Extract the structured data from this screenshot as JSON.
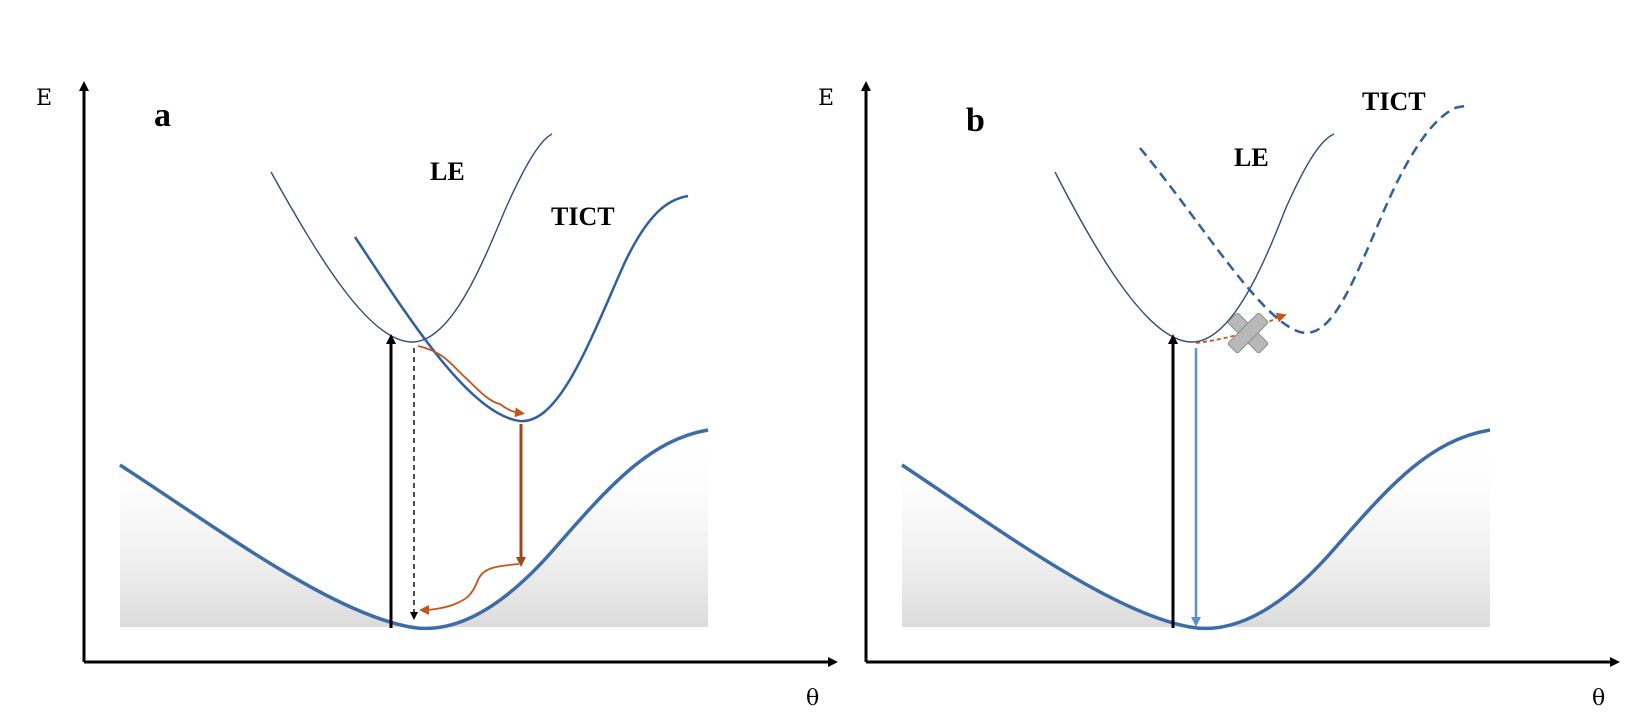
{
  "panels": [
    {
      "letter": "a",
      "y_axis_label": "E",
      "x_axis_label": "θ",
      "le_label": "LE",
      "ticet_label": "TICT"
    },
    {
      "letter": "b",
      "y_axis_label": "E",
      "x_axis_label": "θ",
      "le_label": "LE",
      "ticet_label": "TICT"
    }
  ],
  "colors": {
    "ground_state": "#3d6da6",
    "le_curve": "#2f4a7c",
    "tict_curve": "#2f5f9e",
    "nonradiative": "#c0561a",
    "ict_emission": "#a04818",
    "le_emission_b": "#5b8fd0",
    "blocked_marker": "#b8b8b8",
    "axis": "#000000"
  }
}
